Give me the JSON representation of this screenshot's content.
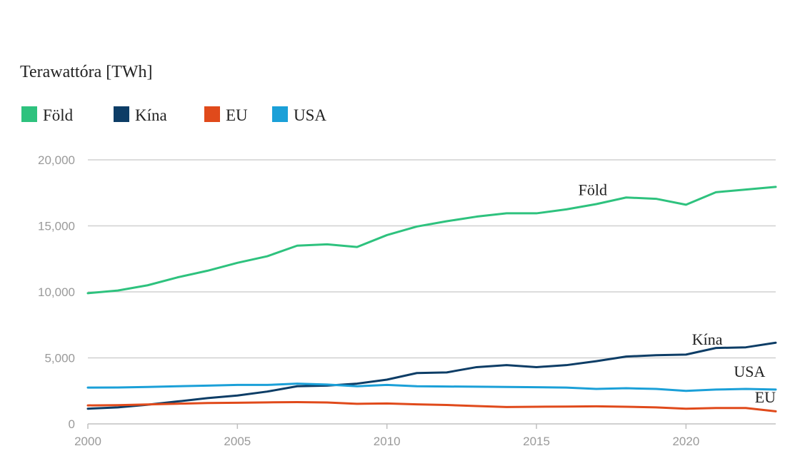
{
  "chart_data": {
    "type": "line",
    "ylabel": "Terawattóra [TWh]",
    "x": [
      2000,
      2001,
      2002,
      2003,
      2004,
      2005,
      2006,
      2007,
      2008,
      2009,
      2010,
      2011,
      2012,
      2013,
      2014,
      2015,
      2016,
      2017,
      2018,
      2019,
      2020,
      2021,
      2022,
      2023
    ],
    "xticks": [
      "2000",
      "2005",
      "2010",
      "2015",
      "2020"
    ],
    "yticks": [
      "0",
      "5,000",
      "10,000",
      "15,000",
      "20,000"
    ],
    "ylim": [
      0,
      20000
    ],
    "xlim": [
      2000,
      2023
    ],
    "grid": true,
    "legend_position": "top-left",
    "series": [
      {
        "name": "Föld",
        "color": "#2ec27e",
        "label": "Föld",
        "values": [
          9900,
          10100,
          10500,
          11100,
          11600,
          12200,
          12700,
          13500,
          13600,
          13400,
          14300,
          14950,
          15350,
          15700,
          15950,
          15950,
          16250,
          16650,
          17150,
          17050,
          16600,
          17550,
          17750,
          17950
        ]
      },
      {
        "name": "Kína",
        "color": "#0d3d66",
        "label": "Kína",
        "values": [
          1150,
          1250,
          1450,
          1700,
          1950,
          2150,
          2450,
          2850,
          2900,
          3050,
          3350,
          3850,
          3900,
          4300,
          4450,
          4300,
          4450,
          4750,
          5100,
          5200,
          5250,
          5750,
          5800,
          6150
        ]
      },
      {
        "name": "EU",
        "color": "#e04a1b",
        "label": "EU",
        "values": [
          1400,
          1420,
          1470,
          1530,
          1580,
          1600,
          1630,
          1650,
          1620,
          1520,
          1550,
          1480,
          1430,
          1350,
          1280,
          1300,
          1310,
          1330,
          1300,
          1250,
          1150,
          1200,
          1200,
          950
        ]
      },
      {
        "name": "USA",
        "color": "#1ba0d8",
        "label": "USA",
        "values": [
          2750,
          2760,
          2800,
          2850,
          2900,
          2950,
          2950,
          3050,
          2980,
          2850,
          2950,
          2850,
          2830,
          2820,
          2800,
          2780,
          2750,
          2650,
          2700,
          2650,
          2500,
          2600,
          2650,
          2600
        ]
      }
    ]
  }
}
